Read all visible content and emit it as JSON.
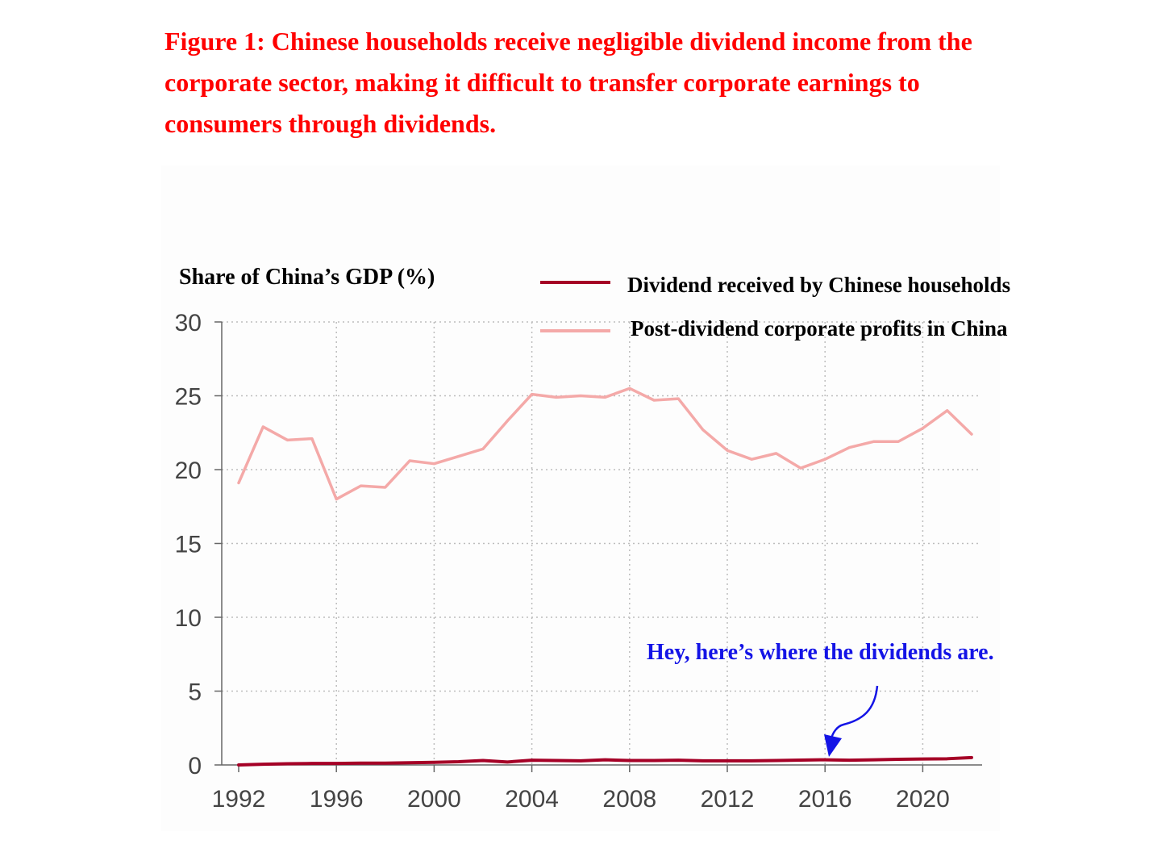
{
  "figure_title": "Figure 1: Chinese households receive negligible dividend income from the corporate sector, making it difficult to transfer corporate earnings to consumers through dividends.",
  "chart_data": {
    "type": "line",
    "ylabel": "Share of China’s GDP (%)",
    "ylim": [
      0,
      30
    ],
    "yticks": [
      0,
      5,
      10,
      15,
      20,
      25,
      30
    ],
    "xlim": [
      1992,
      2022
    ],
    "xticks": [
      1992,
      1996,
      2000,
      2004,
      2008,
      2012,
      2016,
      2020
    ],
    "grid": true,
    "legend_position": "top-right",
    "x": [
      1992,
      1993,
      1994,
      1995,
      1996,
      1997,
      1998,
      1999,
      2000,
      2001,
      2002,
      2003,
      2004,
      2005,
      2006,
      2007,
      2008,
      2009,
      2010,
      2011,
      2012,
      2013,
      2014,
      2015,
      2016,
      2017,
      2018,
      2019,
      2020,
      2021,
      2022
    ],
    "series": [
      {
        "name": "Dividend received by Chinese households",
        "color": "#a50026",
        "values": [
          0.0,
          0.05,
          0.08,
          0.1,
          0.1,
          0.12,
          0.12,
          0.15,
          0.18,
          0.22,
          0.3,
          0.2,
          0.32,
          0.3,
          0.28,
          0.35,
          0.3,
          0.3,
          0.32,
          0.28,
          0.28,
          0.28,
          0.3,
          0.33,
          0.35,
          0.32,
          0.35,
          0.38,
          0.4,
          0.42,
          0.5
        ]
      },
      {
        "name": "Post-dividend corporate profits in China",
        "color": "#f4a9a8",
        "values": [
          19.1,
          22.9,
          22.0,
          22.1,
          18.0,
          18.9,
          18.8,
          20.6,
          20.4,
          20.9,
          21.4,
          23.3,
          25.1,
          24.9,
          25.0,
          24.9,
          25.5,
          24.7,
          24.8,
          22.7,
          21.3,
          20.7,
          21.1,
          20.1,
          20.7,
          21.5,
          21.9,
          21.9,
          22.8,
          24.0,
          22.4
        ]
      }
    ],
    "annotation": "Hey, here’s where the dividends are."
  }
}
